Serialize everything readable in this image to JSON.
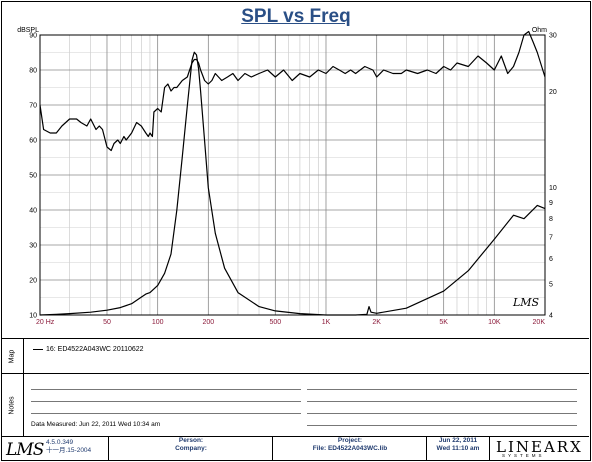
{
  "title": "SPL vs Freq",
  "chart_data": {
    "type": "line",
    "xscale": "log",
    "xlim": [
      20,
      20000
    ],
    "x_ticks": [
      "20 Hz",
      "50",
      "100",
      "200",
      "500",
      "1K",
      "2K",
      "5K",
      "10K",
      "20K"
    ],
    "x_tick_values": [
      20,
      50,
      100,
      200,
      500,
      1000,
      2000,
      5000,
      10000,
      20000
    ],
    "left_axis": {
      "label": "dBSPL",
      "ylim": [
        10,
        90
      ],
      "ticks": [
        "10",
        "20",
        "30",
        "40",
        "50",
        "60",
        "70",
        "80",
        "90"
      ]
    },
    "right_axis": {
      "label": "Ohm",
      "scale": "log",
      "ylim": [
        4,
        30
      ],
      "ticks": [
        "4",
        "5",
        "6",
        "7",
        "8",
        "9",
        "10",
        "20",
        "30"
      ],
      "tick_values": [
        4,
        5,
        6,
        7,
        8,
        9,
        10,
        20,
        30
      ]
    },
    "grid": true,
    "series": [
      {
        "name": "SPL",
        "axis": "left",
        "x": [
          20,
          21,
          23,
          25,
          27,
          30,
          33,
          35,
          38,
          40,
          43,
          45,
          47,
          50,
          53,
          55,
          58,
          60,
          63,
          65,
          70,
          75,
          80,
          85,
          88,
          90,
          93,
          95,
          100,
          105,
          110,
          115,
          120,
          125,
          130,
          140,
          150,
          160,
          165,
          170,
          175,
          180,
          190,
          200,
          210,
          220,
          240,
          260,
          280,
          300,
          330,
          360,
          400,
          450,
          500,
          560,
          630,
          700,
          800,
          900,
          1000,
          1100,
          1200,
          1300,
          1400,
          1500,
          1700,
          1900,
          2000,
          2200,
          2500,
          2800,
          3000,
          3500,
          4000,
          4500,
          5000,
          5500,
          6000,
          7000,
          8000,
          9000,
          10000,
          11000,
          12000,
          13000,
          14000,
          15000,
          16000,
          17000,
          18000,
          20000
        ],
        "y": [
          70,
          63,
          62,
          62,
          64,
          66,
          66,
          65,
          64,
          66,
          63,
          64,
          63,
          58,
          57,
          59,
          60,
          59,
          61,
          60,
          62,
          65,
          64,
          62,
          61,
          62,
          61,
          68,
          69,
          68,
          75,
          76,
          74,
          75,
          75,
          77,
          78,
          82,
          83,
          83,
          82,
          80,
          77,
          76,
          77,
          79,
          77,
          78,
          79,
          77,
          79,
          78,
          79,
          80,
          78,
          80,
          77,
          79,
          78,
          80,
          79,
          81,
          80,
          79,
          80,
          79,
          81,
          80,
          78,
          80,
          79,
          79,
          80,
          79,
          80,
          79,
          81,
          80,
          82,
          81,
          84,
          82,
          80,
          84,
          79,
          81,
          85,
          90,
          91,
          88,
          85,
          78
        ]
      },
      {
        "name": "Impedance",
        "axis": "right",
        "x": [
          20,
          25,
          30,
          40,
          50,
          60,
          70,
          80,
          85,
          90,
          100,
          110,
          120,
          130,
          140,
          150,
          160,
          165,
          170,
          175,
          180,
          190,
          200,
          220,
          250,
          300,
          400,
          500,
          700,
          1000,
          1500,
          1750,
          1800,
          1850,
          2000,
          3000,
          5000,
          7000,
          10000,
          13000,
          15000,
          18000,
          20000
        ],
        "y": [
          4.0,
          4.02,
          4.04,
          4.08,
          4.14,
          4.22,
          4.34,
          4.55,
          4.65,
          4.7,
          4.95,
          5.4,
          6.2,
          8.5,
          12.5,
          18,
          25,
          26.5,
          26,
          23.5,
          20,
          14,
          10,
          7.2,
          5.6,
          4.7,
          4.25,
          4.12,
          4.04,
          4.0,
          4.0,
          4.02,
          4.25,
          4.08,
          4.05,
          4.2,
          4.75,
          5.5,
          6.9,
          8.2,
          8.0,
          8.8,
          8.6
        ]
      }
    ]
  },
  "map": {
    "side_label": "Map",
    "legend_text": "16: ED4522A043WC   20110622"
  },
  "notes": {
    "side_label": "Notes",
    "date_measured": "Data Measured: Jun 22, 2011  Wed 10:34 am"
  },
  "footer": {
    "logo": "LMS",
    "version": "4.5.0.349",
    "version_date": "十一月.15-2004",
    "person_label": "Person:",
    "company_label": "Company:",
    "project_label": "Project:",
    "file_label": "File: ED4522A043WC.lib",
    "date": "Jun 22, 2011",
    "time": "Wed 11:10 am",
    "brand": "LINEARX",
    "brand_sub": "SYSTEMS"
  },
  "watermark": "LMS"
}
